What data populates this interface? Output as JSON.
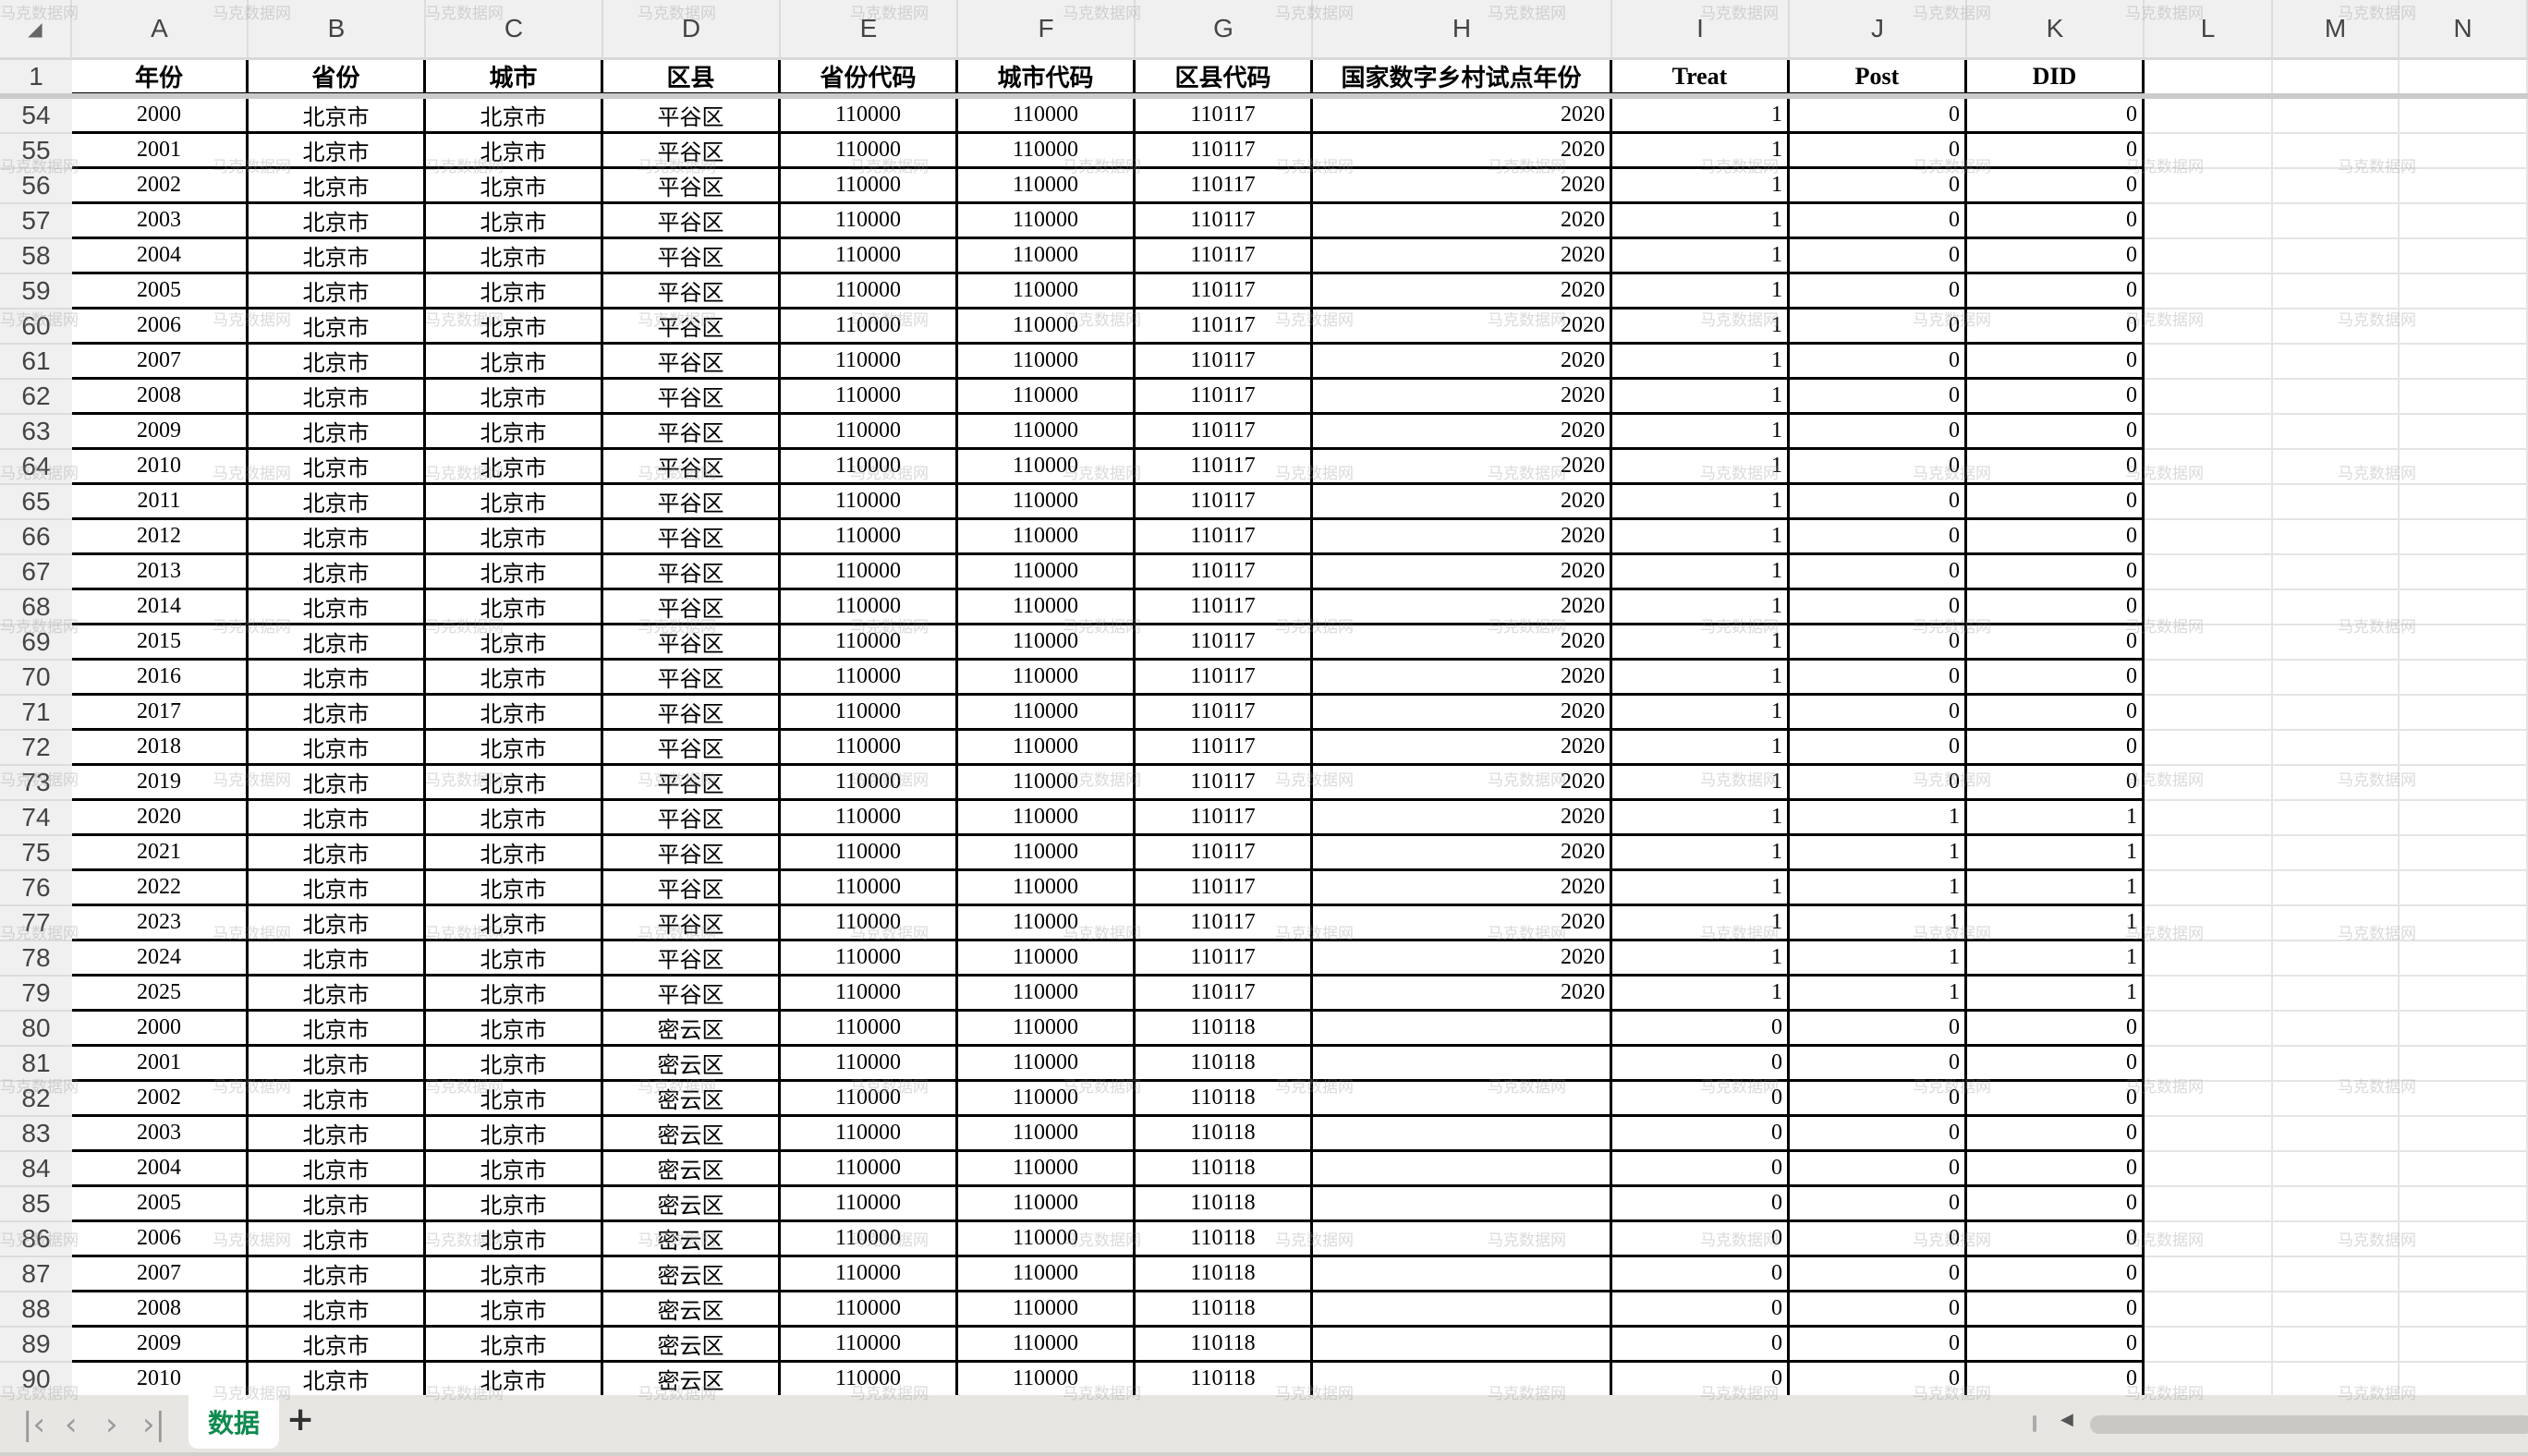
{
  "watermark": "马克数据网",
  "select_all_icon": "triangle-corner-icon",
  "columns": [
    "A",
    "B",
    "C",
    "D",
    "E",
    "F",
    "G",
    "H",
    "I",
    "J",
    "K",
    "L",
    "M",
    "N"
  ],
  "header_row": {
    "row": "1",
    "cells": [
      "年份",
      "省份",
      "城市",
      "区县",
      "省份代码",
      "城市代码",
      "区县代码",
      "国家数字乡村试点年份",
      "Treat",
      "Post",
      "DID"
    ]
  },
  "rows": [
    {
      "row": "54",
      "cells": [
        "2000",
        "北京市",
        "北京市",
        "平谷区",
        "110000",
        "110000",
        "110117",
        "2020",
        "1",
        "0",
        "0"
      ]
    },
    {
      "row": "55",
      "cells": [
        "2001",
        "北京市",
        "北京市",
        "平谷区",
        "110000",
        "110000",
        "110117",
        "2020",
        "1",
        "0",
        "0"
      ]
    },
    {
      "row": "56",
      "cells": [
        "2002",
        "北京市",
        "北京市",
        "平谷区",
        "110000",
        "110000",
        "110117",
        "2020",
        "1",
        "0",
        "0"
      ]
    },
    {
      "row": "57",
      "cells": [
        "2003",
        "北京市",
        "北京市",
        "平谷区",
        "110000",
        "110000",
        "110117",
        "2020",
        "1",
        "0",
        "0"
      ]
    },
    {
      "row": "58",
      "cells": [
        "2004",
        "北京市",
        "北京市",
        "平谷区",
        "110000",
        "110000",
        "110117",
        "2020",
        "1",
        "0",
        "0"
      ]
    },
    {
      "row": "59",
      "cells": [
        "2005",
        "北京市",
        "北京市",
        "平谷区",
        "110000",
        "110000",
        "110117",
        "2020",
        "1",
        "0",
        "0"
      ]
    },
    {
      "row": "60",
      "cells": [
        "2006",
        "北京市",
        "北京市",
        "平谷区",
        "110000",
        "110000",
        "110117",
        "2020",
        "1",
        "0",
        "0"
      ]
    },
    {
      "row": "61",
      "cells": [
        "2007",
        "北京市",
        "北京市",
        "平谷区",
        "110000",
        "110000",
        "110117",
        "2020",
        "1",
        "0",
        "0"
      ]
    },
    {
      "row": "62",
      "cells": [
        "2008",
        "北京市",
        "北京市",
        "平谷区",
        "110000",
        "110000",
        "110117",
        "2020",
        "1",
        "0",
        "0"
      ]
    },
    {
      "row": "63",
      "cells": [
        "2009",
        "北京市",
        "北京市",
        "平谷区",
        "110000",
        "110000",
        "110117",
        "2020",
        "1",
        "0",
        "0"
      ]
    },
    {
      "row": "64",
      "cells": [
        "2010",
        "北京市",
        "北京市",
        "平谷区",
        "110000",
        "110000",
        "110117",
        "2020",
        "1",
        "0",
        "0"
      ]
    },
    {
      "row": "65",
      "cells": [
        "2011",
        "北京市",
        "北京市",
        "平谷区",
        "110000",
        "110000",
        "110117",
        "2020",
        "1",
        "0",
        "0"
      ]
    },
    {
      "row": "66",
      "cells": [
        "2012",
        "北京市",
        "北京市",
        "平谷区",
        "110000",
        "110000",
        "110117",
        "2020",
        "1",
        "0",
        "0"
      ]
    },
    {
      "row": "67",
      "cells": [
        "2013",
        "北京市",
        "北京市",
        "平谷区",
        "110000",
        "110000",
        "110117",
        "2020",
        "1",
        "0",
        "0"
      ]
    },
    {
      "row": "68",
      "cells": [
        "2014",
        "北京市",
        "北京市",
        "平谷区",
        "110000",
        "110000",
        "110117",
        "2020",
        "1",
        "0",
        "0"
      ]
    },
    {
      "row": "69",
      "cells": [
        "2015",
        "北京市",
        "北京市",
        "平谷区",
        "110000",
        "110000",
        "110117",
        "2020",
        "1",
        "0",
        "0"
      ]
    },
    {
      "row": "70",
      "cells": [
        "2016",
        "北京市",
        "北京市",
        "平谷区",
        "110000",
        "110000",
        "110117",
        "2020",
        "1",
        "0",
        "0"
      ]
    },
    {
      "row": "71",
      "cells": [
        "2017",
        "北京市",
        "北京市",
        "平谷区",
        "110000",
        "110000",
        "110117",
        "2020",
        "1",
        "0",
        "0"
      ]
    },
    {
      "row": "72",
      "cells": [
        "2018",
        "北京市",
        "北京市",
        "平谷区",
        "110000",
        "110000",
        "110117",
        "2020",
        "1",
        "0",
        "0"
      ]
    },
    {
      "row": "73",
      "cells": [
        "2019",
        "北京市",
        "北京市",
        "平谷区",
        "110000",
        "110000",
        "110117",
        "2020",
        "1",
        "0",
        "0"
      ]
    },
    {
      "row": "74",
      "cells": [
        "2020",
        "北京市",
        "北京市",
        "平谷区",
        "110000",
        "110000",
        "110117",
        "2020",
        "1",
        "1",
        "1"
      ]
    },
    {
      "row": "75",
      "cells": [
        "2021",
        "北京市",
        "北京市",
        "平谷区",
        "110000",
        "110000",
        "110117",
        "2020",
        "1",
        "1",
        "1"
      ]
    },
    {
      "row": "76",
      "cells": [
        "2022",
        "北京市",
        "北京市",
        "平谷区",
        "110000",
        "110000",
        "110117",
        "2020",
        "1",
        "1",
        "1"
      ]
    },
    {
      "row": "77",
      "cells": [
        "2023",
        "北京市",
        "北京市",
        "平谷区",
        "110000",
        "110000",
        "110117",
        "2020",
        "1",
        "1",
        "1"
      ]
    },
    {
      "row": "78",
      "cells": [
        "2024",
        "北京市",
        "北京市",
        "平谷区",
        "110000",
        "110000",
        "110117",
        "2020",
        "1",
        "1",
        "1"
      ]
    },
    {
      "row": "79",
      "cells": [
        "2025",
        "北京市",
        "北京市",
        "平谷区",
        "110000",
        "110000",
        "110117",
        "2020",
        "1",
        "1",
        "1"
      ]
    },
    {
      "row": "80",
      "cells": [
        "2000",
        "北京市",
        "北京市",
        "密云区",
        "110000",
        "110000",
        "110118",
        "",
        "0",
        "0",
        "0"
      ]
    },
    {
      "row": "81",
      "cells": [
        "2001",
        "北京市",
        "北京市",
        "密云区",
        "110000",
        "110000",
        "110118",
        "",
        "0",
        "0",
        "0"
      ]
    },
    {
      "row": "82",
      "cells": [
        "2002",
        "北京市",
        "北京市",
        "密云区",
        "110000",
        "110000",
        "110118",
        "",
        "0",
        "0",
        "0"
      ]
    },
    {
      "row": "83",
      "cells": [
        "2003",
        "北京市",
        "北京市",
        "密云区",
        "110000",
        "110000",
        "110118",
        "",
        "0",
        "0",
        "0"
      ]
    },
    {
      "row": "84",
      "cells": [
        "2004",
        "北京市",
        "北京市",
        "密云区",
        "110000",
        "110000",
        "110118",
        "",
        "0",
        "0",
        "0"
      ]
    },
    {
      "row": "85",
      "cells": [
        "2005",
        "北京市",
        "北京市",
        "密云区",
        "110000",
        "110000",
        "110118",
        "",
        "0",
        "0",
        "0"
      ]
    },
    {
      "row": "86",
      "cells": [
        "2006",
        "北京市",
        "北京市",
        "密云区",
        "110000",
        "110000",
        "110118",
        "",
        "0",
        "0",
        "0"
      ]
    },
    {
      "row": "87",
      "cells": [
        "2007",
        "北京市",
        "北京市",
        "密云区",
        "110000",
        "110000",
        "110118",
        "",
        "0",
        "0",
        "0"
      ]
    },
    {
      "row": "88",
      "cells": [
        "2008",
        "北京市",
        "北京市",
        "密云区",
        "110000",
        "110000",
        "110118",
        "",
        "0",
        "0",
        "0"
      ]
    },
    {
      "row": "89",
      "cells": [
        "2009",
        "北京市",
        "北京市",
        "密云区",
        "110000",
        "110000",
        "110118",
        "",
        "0",
        "0",
        "0"
      ]
    },
    {
      "row": "90",
      "cells": [
        "2010",
        "北京市",
        "北京市",
        "密云区",
        "110000",
        "110000",
        "110118",
        "",
        "0",
        "0",
        "0"
      ]
    }
  ],
  "sheet_tabs": [
    {
      "label": "数据",
      "active": true
    }
  ],
  "bottom_bar": {
    "first_icon": "first-sheet-icon",
    "prev_icon": "prev-sheet-icon",
    "next_icon": "next-sheet-icon",
    "last_icon": "last-sheet-icon",
    "add_sheet": "+",
    "accent": "#0f8a4f"
  }
}
